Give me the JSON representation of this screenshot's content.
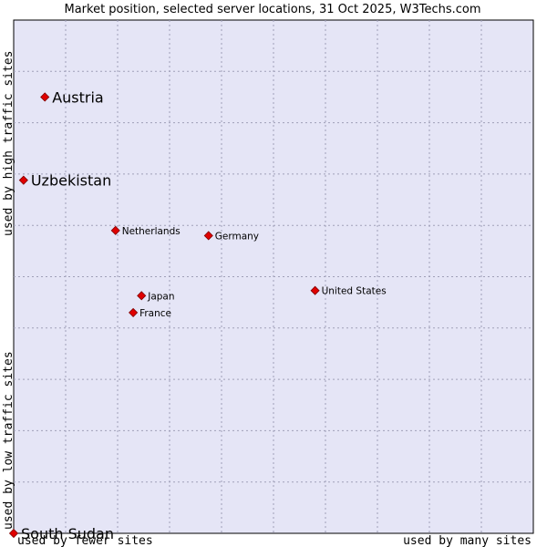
{
  "chart_data": {
    "type": "scatter",
    "title": "Market position, selected server locations, 31 Oct 2025, W3Techs.com",
    "xlabel_low": "used by fewer sites",
    "xlabel_high": "used by many sites",
    "ylabel_low": "used by low traffic sites",
    "ylabel_high": "used by high traffic sites",
    "xlim": [
      0,
      100
    ],
    "ylim": [
      0,
      100
    ],
    "grid": true,
    "points": [
      {
        "label": "Austria",
        "x": 6.0,
        "y": 85.0,
        "highlight": true
      },
      {
        "label": "Uzbekistan",
        "x": 1.9,
        "y": 68.8,
        "highlight": true
      },
      {
        "label": "Netherlands",
        "x": 19.6,
        "y": 59.0,
        "highlight": false
      },
      {
        "label": "Germany",
        "x": 37.5,
        "y": 58.0,
        "highlight": false
      },
      {
        "label": "United States",
        "x": 58.0,
        "y": 47.3,
        "highlight": false
      },
      {
        "label": "Japan",
        "x": 24.6,
        "y": 46.3,
        "highlight": false
      },
      {
        "label": "France",
        "x": 23.0,
        "y": 43.0,
        "highlight": false
      },
      {
        "label": "South Sudan",
        "x": 0,
        "y": 0,
        "highlight": true
      }
    ]
  }
}
